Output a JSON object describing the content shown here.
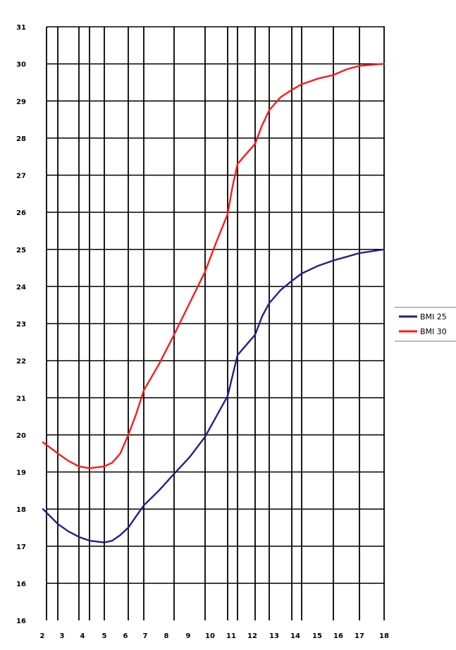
{
  "chart_data": {
    "type": "line",
    "title": "",
    "xlabel": "",
    "ylabel": "",
    "x": [
      2,
      3,
      4,
      5,
      6,
      7,
      8,
      9,
      10,
      11,
      12,
      13,
      14,
      15,
      16,
      17,
      18
    ],
    "xlim": [
      2,
      18
    ],
    "x_tick_labels": [
      "2",
      "3",
      "4",
      "5",
      "6",
      "7",
      "8",
      "9",
      "10",
      "11",
      "12",
      "13",
      "14",
      "15",
      "16",
      "17",
      "18"
    ],
    "ylim": [
      15,
      31
    ],
    "y_tick_labels": [
      "16",
      "16",
      "17",
      "18",
      "19",
      "20",
      "21",
      "22",
      "23",
      "24",
      "25",
      "26",
      "27",
      "28",
      "29",
      "30",
      "31"
    ],
    "grid": true,
    "legend_position": "right",
    "series": [
      {
        "name": "BMI 25",
        "color": "#20208c",
        "points": [
          [
            2.0,
            18.0
          ],
          [
            2.5,
            17.6
          ],
          [
            3.0,
            17.4
          ],
          [
            3.5,
            17.25
          ],
          [
            4.0,
            17.15
          ],
          [
            4.5,
            17.1
          ],
          [
            5.0,
            17.15
          ],
          [
            5.5,
            17.3
          ],
          [
            6.0,
            17.5
          ],
          [
            6.5,
            17.8
          ],
          [
            7.0,
            18.1
          ],
          [
            7.5,
            18.5
          ],
          [
            8.0,
            18.95
          ],
          [
            8.5,
            19.4
          ],
          [
            9.0,
            19.95
          ],
          [
            9.5,
            20.5
          ],
          [
            10.0,
            21.05
          ],
          [
            10.5,
            21.6
          ],
          [
            11.0,
            22.15
          ],
          [
            11.5,
            22.7
          ],
          [
            12.0,
            23.2
          ],
          [
            12.5,
            23.55
          ],
          [
            13.0,
            23.9
          ],
          [
            13.5,
            24.15
          ],
          [
            14.0,
            24.35
          ],
          [
            14.5,
            24.55
          ],
          [
            15.0,
            24.7
          ],
          [
            15.5,
            24.8
          ],
          [
            16.0,
            24.9
          ],
          [
            18.0,
            25.0
          ]
        ]
      },
      {
        "name": "BMI 30",
        "color": "#ff1a1a",
        "points": [
          [
            2.0,
            19.8
          ],
          [
            2.5,
            19.5
          ],
          [
            3.0,
            19.3
          ],
          [
            3.5,
            19.15
          ],
          [
            4.0,
            19.1
          ],
          [
            4.5,
            19.15
          ],
          [
            5.0,
            19.25
          ],
          [
            5.5,
            19.5
          ],
          [
            6.0,
            20.0
          ],
          [
            6.5,
            20.55
          ],
          [
            7.0,
            21.2
          ],
          [
            7.5,
            21.9
          ],
          [
            8.0,
            22.7
          ],
          [
            8.5,
            23.55
          ],
          [
            9.0,
            24.4
          ],
          [
            9.5,
            25.2
          ],
          [
            10.0,
            25.95
          ],
          [
            10.5,
            26.7
          ],
          [
            11.0,
            27.3
          ],
          [
            11.5,
            27.85
          ],
          [
            12.0,
            28.35
          ],
          [
            12.5,
            28.75
          ],
          [
            13.0,
            29.1
          ],
          [
            13.5,
            29.3
          ],
          [
            14.0,
            29.45
          ],
          [
            14.5,
            29.6
          ],
          [
            15.0,
            29.7
          ],
          [
            15.5,
            29.85
          ],
          [
            16.0,
            29.95
          ],
          [
            18.0,
            30.0
          ]
        ]
      }
    ]
  }
}
